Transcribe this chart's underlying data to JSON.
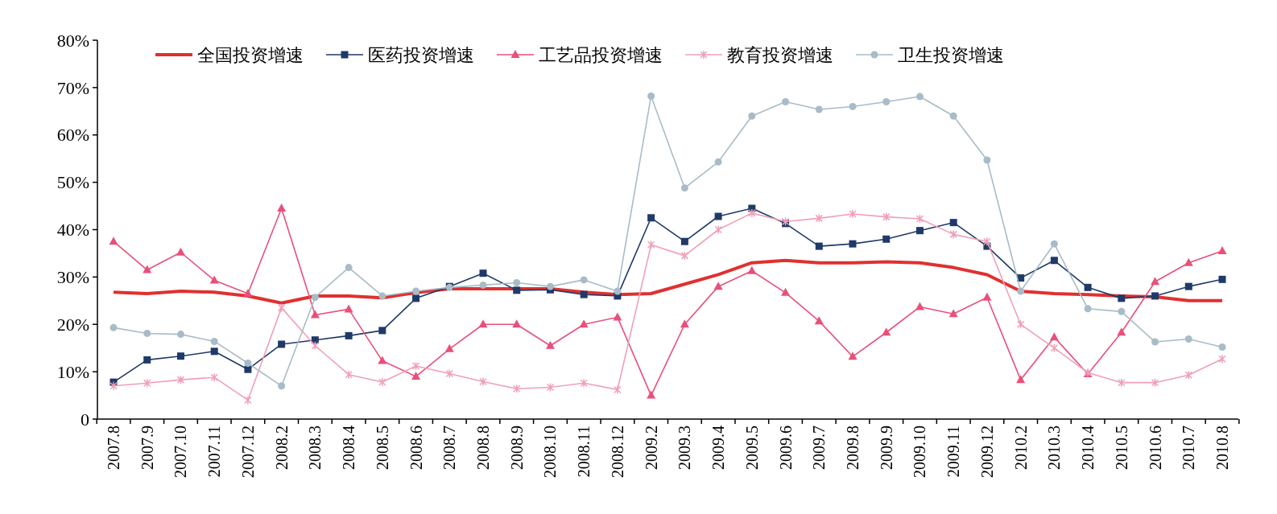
{
  "chart_data": {
    "type": "line",
    "categories": [
      "2007.8",
      "2007.9",
      "2007.10",
      "2007.11",
      "2007.12",
      "2008.2",
      "2008.3",
      "2008.4",
      "2008.5",
      "2008.6",
      "2008.7",
      "2008.8",
      "2008.9",
      "2008.10",
      "2008.11",
      "2008.12",
      "2009.2",
      "2009.3",
      "2009.4",
      "2009.5",
      "2009.6",
      "2009.7",
      "2009.8",
      "2009.9",
      "2009.10",
      "2009.11",
      "2009.12",
      "2010.2",
      "2010.3",
      "2010.4",
      "2010.5",
      "2010.6",
      "2010.7",
      "2010.8"
    ],
    "series": [
      {
        "name": "全国投资增速",
        "color": "#e03030",
        "marker": "none",
        "values": [
          26.8,
          26.5,
          27,
          26.8,
          26,
          24.5,
          26,
          26,
          25.6,
          26.7,
          27.5,
          27.5,
          27.5,
          27.5,
          26.8,
          26.3,
          26.5,
          28.5,
          30.5,
          33,
          33.5,
          33,
          33,
          33.2,
          33,
          32,
          30.5,
          27,
          26.5,
          26.3,
          26,
          25.8,
          25,
          25
        ]
      },
      {
        "name": "医药投资增速",
        "color": "#1f3a68",
        "marker": "square",
        "values": [
          7.8,
          12.5,
          13.3,
          14.3,
          10.5,
          15.8,
          16.7,
          17.6,
          18.7,
          25.5,
          28,
          30.8,
          27.2,
          27.3,
          26.3,
          26,
          42.5,
          37.5,
          42.8,
          44.5,
          41.3,
          36.5,
          37,
          38,
          39.8,
          41.5,
          36.5,
          29.8,
          33.5,
          27.8,
          25.5,
          26,
          28,
          29.5
        ]
      },
      {
        "name": "工艺品投资增速",
        "color": "#e8507a",
        "marker": "triangle",
        "values": [
          37.5,
          31.5,
          35.2,
          29.3,
          26.5,
          44.5,
          22,
          23.2,
          12.3,
          9,
          14.8,
          20,
          20,
          15.5,
          20,
          21.5,
          5,
          20,
          28,
          31.3,
          26.7,
          20.7,
          13.2,
          18.3,
          23.7,
          22.2,
          25.7,
          8.3,
          17.3,
          9.5,
          18.3,
          29,
          33,
          35.5
        ]
      },
      {
        "name": "教育投资增速",
        "color": "#f0a0b8",
        "marker": "cross",
        "values": [
          7,
          7.6,
          8.3,
          8.8,
          4,
          23.5,
          15.5,
          9.4,
          7.8,
          11.2,
          9.6,
          7.9,
          6.4,
          6.7,
          7.6,
          6.2,
          36.8,
          34.5,
          40,
          43.5,
          41.7,
          42.4,
          43.3,
          42.7,
          42.3,
          39,
          37.5,
          20,
          15,
          9.8,
          7.7,
          7.7,
          9.3,
          12.7
        ]
      },
      {
        "name": "卫生投资增速",
        "color": "#a8bcc8",
        "marker": "circle",
        "values": [
          19.3,
          18.1,
          17.9,
          16.4,
          11.8,
          7,
          25.7,
          32,
          26,
          27,
          27.8,
          28.3,
          28.8,
          28,
          29.4,
          27,
          68.2,
          48.8,
          54.3,
          64,
          67,
          65.4,
          66,
          67,
          68.1,
          64,
          54.7,
          27,
          37,
          23.3,
          22.7,
          16.3,
          16.9,
          15.2
        ]
      }
    ],
    "ylim": [
      0,
      80
    ],
    "yticks": [
      {
        "value": 0,
        "label": "0"
      },
      {
        "value": 10,
        "label": "10%"
      },
      {
        "value": 20,
        "label": "20%"
      },
      {
        "value": 30,
        "label": "30%"
      },
      {
        "value": 40,
        "label": "40%"
      },
      {
        "value": 50,
        "label": "50%"
      },
      {
        "value": 60,
        "label": "60%"
      },
      {
        "value": 70,
        "label": "70%"
      },
      {
        "value": 80,
        "label": "80%"
      }
    ],
    "grid": false,
    "legend": "top"
  }
}
